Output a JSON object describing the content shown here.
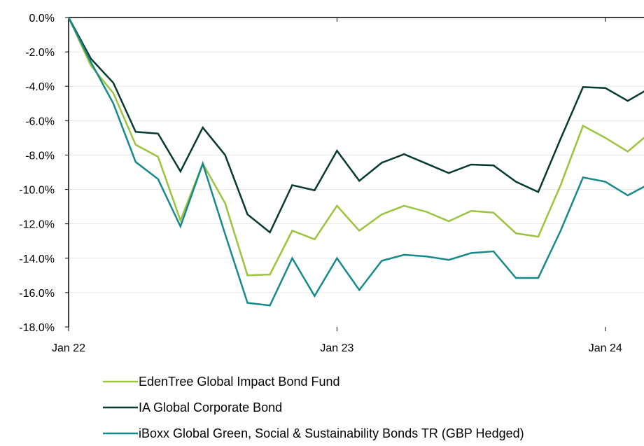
{
  "chart_data": {
    "type": "line",
    "title": "",
    "xlabel": "",
    "ylabel": "",
    "x_ticks": [
      "Jan 22",
      "Jan 23",
      "Jan 24"
    ],
    "y_ticks": [
      "0.0%",
      "-2.0%",
      "-4.0%",
      "-6.0%",
      "-8.0%",
      "-10.0%",
      "-12.0%",
      "-14.0%",
      "-16.0%",
      "-18.0%"
    ],
    "ylim": [
      -18,
      0
    ],
    "grid": "horizontal",
    "legend_position": "bottom",
    "x_months": [
      "2022-01",
      "2022-02",
      "2022-03",
      "2022-04",
      "2022-05",
      "2022-06",
      "2022-07",
      "2022-08",
      "2022-09",
      "2022-10",
      "2022-11",
      "2022-12",
      "2023-01",
      "2023-02",
      "2023-03",
      "2023-04",
      "2023-05",
      "2023-06",
      "2023-07",
      "2023-08",
      "2023-09",
      "2023-10",
      "2023-11",
      "2023-12",
      "2024-01",
      "2024-02",
      "2024-03"
    ],
    "series": [
      {
        "name": "EdenTree Global Impact Bond Fund",
        "color": "#9bc33d",
        "values": [
          0.0,
          -2.8,
          -4.4,
          -7.4,
          -8.1,
          -11.8,
          -8.5,
          -10.8,
          -15.0,
          -14.95,
          -12.4,
          -12.9,
          -10.95,
          -12.4,
          -11.45,
          -10.95,
          -11.3,
          -11.85,
          -11.25,
          -11.35,
          -12.55,
          -12.75,
          -9.75,
          -6.3,
          -7.0,
          -7.8,
          -6.7
        ]
      },
      {
        "name": "IA Global Corporate Bond",
        "color": "#063a31",
        "values": [
          0.0,
          -2.4,
          -3.8,
          -6.65,
          -6.75,
          -8.95,
          -6.4,
          -8.0,
          -11.45,
          -12.5,
          -9.75,
          -10.05,
          -7.75,
          -9.5,
          -8.45,
          -7.95,
          -8.5,
          -9.05,
          -8.55,
          -8.6,
          -9.55,
          -10.15,
          -7.05,
          -4.05,
          -4.1,
          -4.85,
          -4.1
        ]
      },
      {
        "name": "iBoxx Global Green, Social & Sustainability Bonds TR (GBP Hedged)",
        "color": "#168a8b",
        "values": [
          0.0,
          -2.6,
          -5.0,
          -8.4,
          -9.4,
          -12.15,
          -8.5,
          -12.6,
          -16.6,
          -16.75,
          -14.0,
          -16.2,
          -14.0,
          -15.85,
          -14.15,
          -13.8,
          -13.9,
          -14.1,
          -13.7,
          -13.6,
          -15.15,
          -15.15,
          -12.4,
          -9.3,
          -9.55,
          -10.35,
          -9.65
        ]
      }
    ]
  }
}
